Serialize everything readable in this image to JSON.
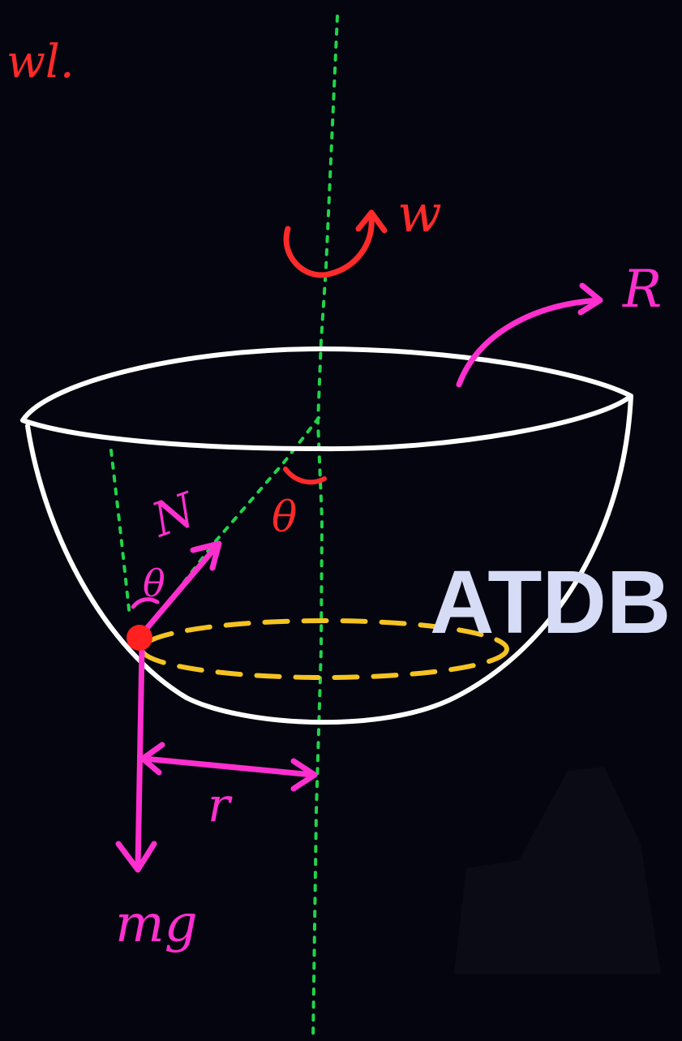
{
  "labels": {
    "omega_l": "wl.",
    "omega": "w",
    "radius": "R",
    "theta_axis": "θ",
    "normal": "N",
    "theta_normal": "θ",
    "r": "r",
    "mg": "mg",
    "watermark": "ATDB"
  },
  "colors": {
    "background": "#05050f",
    "bowl": "#ffffff",
    "axis": "#22d34a",
    "omega": "#ff2a2a",
    "force": "#ff2fcf",
    "circle_path": "#f5c322",
    "particle": "#ff2020",
    "watermark": "#d6dcf5"
  }
}
